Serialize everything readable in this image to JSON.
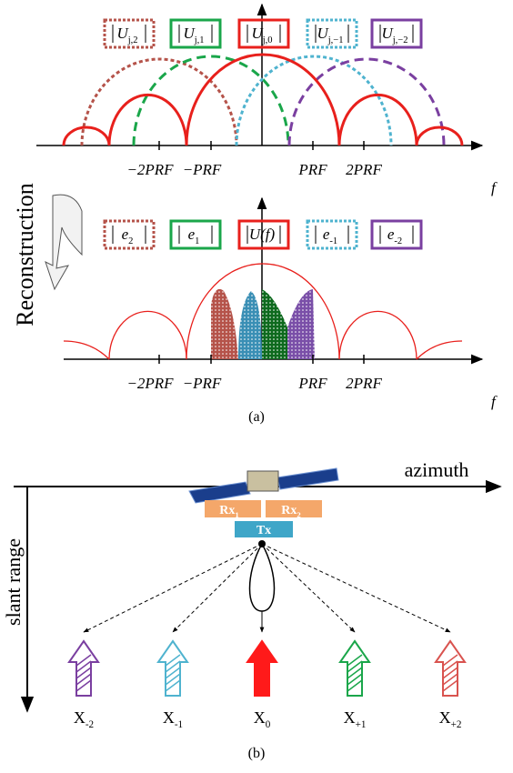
{
  "panel_a": {
    "top": {
      "boxes": [
        {
          "main": "U",
          "sub": "j,2"
        },
        {
          "main": "U",
          "sub": "j,1"
        },
        {
          "main": "U",
          "sub": "j,0"
        },
        {
          "main": "U",
          "sub": "j,−1"
        },
        {
          "main": "U",
          "sub": "j,−2"
        }
      ],
      "ticks": [
        "−2PRF",
        "−PRF",
        "PRF",
        "2PRF"
      ],
      "axis_label": "f"
    },
    "side_label": "Reconstruction",
    "bottom": {
      "boxes": [
        {
          "main": "e",
          "sub": "2"
        },
        {
          "main": "e",
          "sub": "1"
        },
        {
          "main": "U(f)"
        },
        {
          "main": "e",
          "sub": "-1"
        },
        {
          "main": "e",
          "sub": "-2"
        }
      ],
      "ticks": [
        "−2PRF",
        "−PRF",
        "PRF",
        "2PRF"
      ],
      "axis_label": "f"
    },
    "caption": "(a)"
  },
  "panel_b": {
    "x_axis_label": "azimuth",
    "y_axis_label": "slant range",
    "rx": [
      {
        "main": "Rx",
        "sub": "1"
      },
      {
        "main": "Rx",
        "sub": "2"
      }
    ],
    "tx": "Tx",
    "targets": [
      {
        "main": "X",
        "sub": "-2"
      },
      {
        "main": "X",
        "sub": "-1"
      },
      {
        "main": "X",
        "sub": "0"
      },
      {
        "main": "X",
        "sub": "+1"
      },
      {
        "main": "X",
        "sub": "+2"
      }
    ],
    "caption": "(b)"
  }
}
